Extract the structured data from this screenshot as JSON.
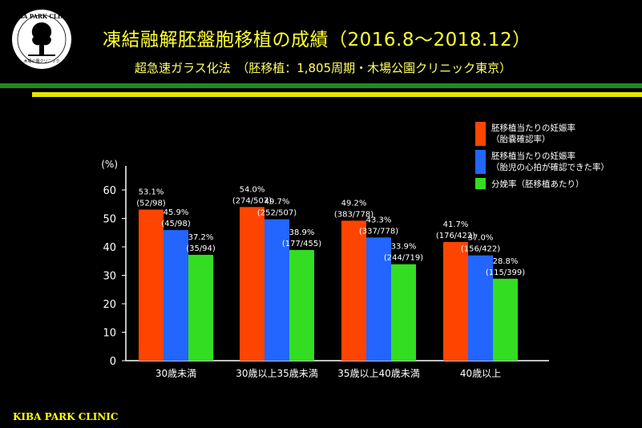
{
  "logo": {
    "text": "KIBA PARK CLINIC",
    "sub": "木場公園クリニック"
  },
  "header": {
    "title": "凍結融解胚盤胞移植の成績（2016.8〜2018.12）",
    "subtitle": "超急速ガラス化法　（胚移植：1,805周期・木場公園クリニック東京）"
  },
  "footer": "KIBA PARK CLINIC",
  "colors": {
    "series1": "#ff4400",
    "series2": "#2266ff",
    "series3": "#33dd22",
    "text": "#ffffff"
  },
  "chart_data": {
    "type": "bar",
    "ylabel": "(%)",
    "ylim": [
      0,
      60
    ],
    "yticks": [
      0,
      10,
      20,
      30,
      40,
      50,
      60
    ],
    "categories": [
      "30歳未満",
      "30歳以上35歳未満",
      "35歳以上40歳未満",
      "40歳以上"
    ],
    "series": [
      {
        "name": "胚移植当たりの妊娠率\n（胎嚢確認率）",
        "values": [
          53.1,
          54.0,
          49.2,
          41.7
        ],
        "labels": [
          "53.1%",
          "54.0%",
          "49.2%",
          "41.7%"
        ],
        "sublabels": [
          "(52/98)",
          "(274/507)",
          "(383/778)",
          "(176/422)"
        ]
      },
      {
        "name": "胚移植当たりの妊娠率\n（胎児の心拍が確認できた率）",
        "values": [
          45.9,
          49.7,
          43.3,
          37.0
        ],
        "labels": [
          "45.9%",
          "49.7%",
          "43.3%",
          "37.0%"
        ],
        "sublabels": [
          "(45/98)",
          "(252/507)",
          "(337/778)",
          "(156/422)"
        ]
      },
      {
        "name": "分娩率（胚移植あたり）",
        "values": [
          37.2,
          38.9,
          33.9,
          28.8
        ],
        "labels": [
          "37.2%",
          "38.9%",
          "33.9%",
          "28.8%"
        ],
        "sublabels": [
          "(35/94)",
          "(177/455)",
          "(244/719)",
          "(115/399)"
        ]
      }
    ]
  }
}
